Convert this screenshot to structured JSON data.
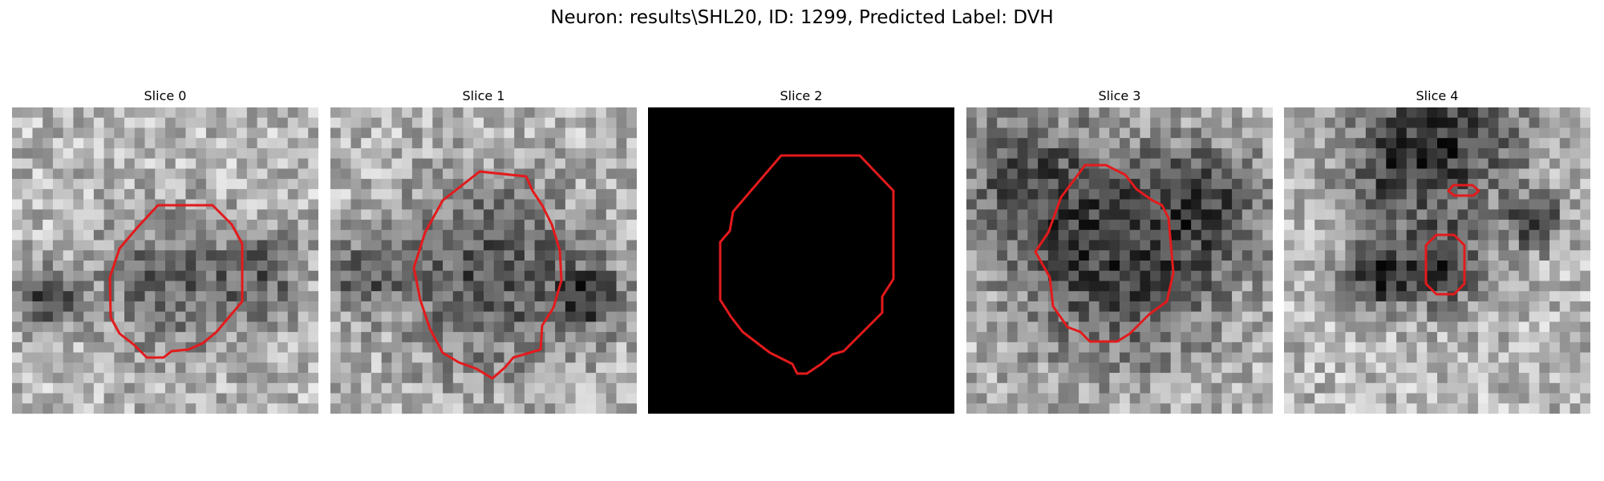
{
  "figure": {
    "suptitle": "Neuron: results\\SHL20, ID: 1299, Predicted Label: DVH",
    "contour_color": "#e31a1c",
    "colormap": "grayscale"
  },
  "panels": [
    {
      "title": "Slice 0",
      "image": "noisy-grayscale-patch"
    },
    {
      "title": "Slice 1",
      "image": "noisy-grayscale-patch"
    },
    {
      "title": "Slice 2",
      "image": "black"
    },
    {
      "title": "Slice 3",
      "image": "noisy-grayscale-patch"
    },
    {
      "title": "Slice 4",
      "image": "noisy-grayscale-patch"
    }
  ]
}
